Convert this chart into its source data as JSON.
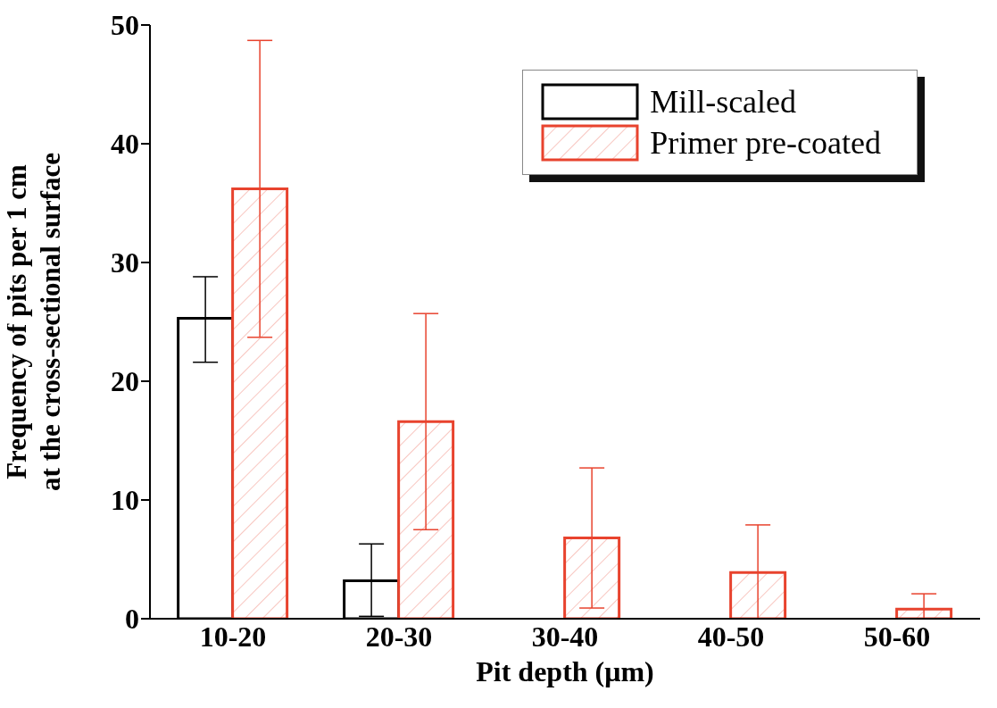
{
  "chart_data": {
    "type": "bar",
    "xlabel": "Pit depth (μm)",
    "ylabel": "Frequency of pits per 1 cm\nat the cross-sectional surface",
    "categories": [
      "10-20",
      "20-30",
      "30-40",
      "40-50",
      "50-60"
    ],
    "series": [
      {
        "name": "Mill-scaled",
        "color": "#000000",
        "values": [
          25.3,
          3.2,
          0,
          0,
          0
        ],
        "errors": [
          [
            21.6,
            28.8
          ],
          [
            0.2,
            6.3
          ],
          null,
          null,
          null
        ]
      },
      {
        "name": "Primer pre-coated",
        "color": "#e8432e",
        "values": [
          36.2,
          16.6,
          6.8,
          3.9,
          0.8
        ],
        "errors": [
          [
            23.7,
            48.7
          ],
          [
            7.5,
            25.7
          ],
          [
            0.9,
            12.7
          ],
          [
            0,
            7.9
          ],
          [
            0,
            2.1
          ]
        ]
      }
    ],
    "ylim": [
      0,
      50
    ],
    "yticks": [
      0,
      10,
      20,
      30,
      40,
      50
    ],
    "grid": false,
    "legend": "top right"
  }
}
